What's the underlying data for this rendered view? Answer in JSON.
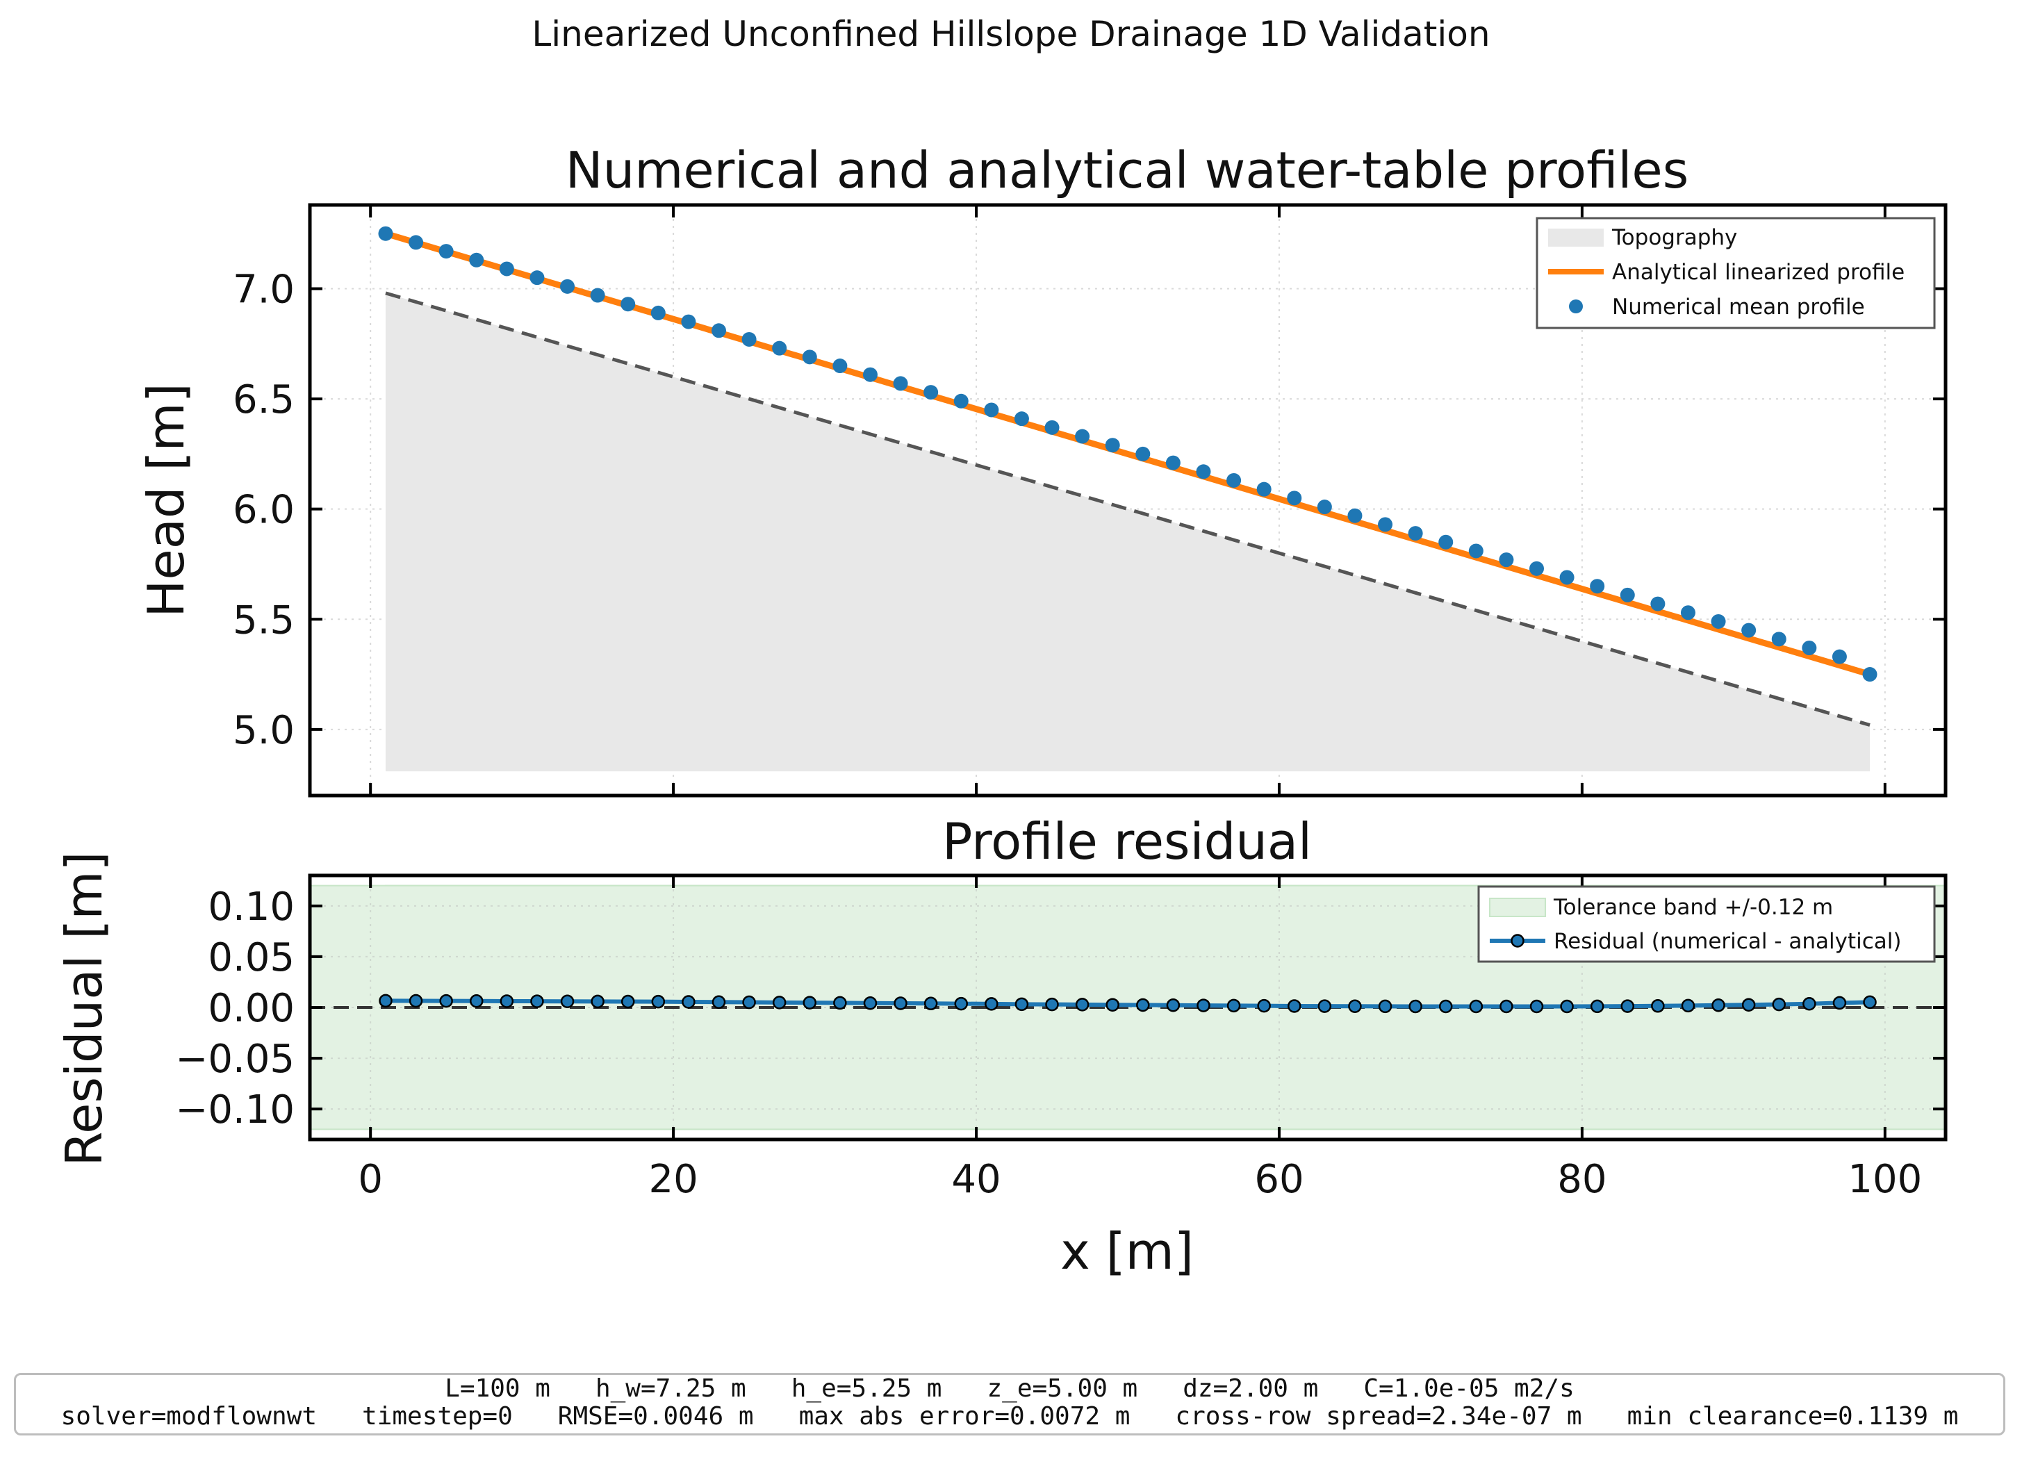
{
  "figure": {
    "suptitle": "Linearized Unconfined Hillslope Drainage 1D Validation"
  },
  "chart_data": [
    {
      "type": "line",
      "title": "Numerical and analytical water-table profiles",
      "xlabel": "",
      "ylabel": "Head [m]",
      "xlim": [
        -4,
        104
      ],
      "ylim": [
        4.7,
        7.38
      ],
      "xticks": [
        0,
        20,
        40,
        60,
        80,
        100
      ],
      "yticks": [
        5.0,
        5.5,
        6.0,
        6.5,
        7.0
      ],
      "ytick_labels": [
        "5.0",
        "5.5",
        "6.0",
        "6.5",
        "7.0"
      ],
      "grid": true,
      "legend_position": "top-right",
      "legend": [
        "Topography",
        "Analytical linearized profile",
        "Numerical mean profile"
      ],
      "colors": {
        "topography": "#e8e8e8",
        "analytical": "#ff7f0e",
        "numerical": "#1f77b4",
        "topo_line": "#555555"
      },
      "topography": {
        "x": [
          1,
          99
        ],
        "y": [
          6.98,
          5.02
        ],
        "fill_bottom": 4.81
      },
      "analytical": {
        "x": [
          1,
          99
        ],
        "y": [
          7.25,
          5.25
        ]
      },
      "numerical": {
        "x": [
          1,
          3,
          5,
          7,
          9,
          11,
          13,
          15,
          17,
          19,
          21,
          23,
          25,
          27,
          29,
          31,
          33,
          35,
          37,
          39,
          41,
          43,
          45,
          47,
          49,
          51,
          53,
          55,
          57,
          59,
          61,
          63,
          65,
          67,
          69,
          71,
          73,
          75,
          77,
          79,
          81,
          83,
          85,
          87,
          89,
          91,
          93,
          95,
          97,
          99
        ],
        "y": [
          7.25,
          7.21,
          7.17,
          7.13,
          7.09,
          7.05,
          7.01,
          6.97,
          6.93,
          6.89,
          6.85,
          6.81,
          6.77,
          6.73,
          6.69,
          6.65,
          6.61,
          6.57,
          6.53,
          6.49,
          6.45,
          6.41,
          6.37,
          6.33,
          6.29,
          6.25,
          6.21,
          6.17,
          6.13,
          6.09,
          6.05,
          6.01,
          5.97,
          5.93,
          5.89,
          5.85,
          5.81,
          5.77,
          5.73,
          5.69,
          5.65,
          5.61,
          5.57,
          5.53,
          5.49,
          5.45,
          5.41,
          5.37,
          5.33,
          5.25
        ]
      }
    },
    {
      "type": "line",
      "title": "Profile residual",
      "xlabel": "x [m]",
      "ylabel": "Residual [m]",
      "xlim": [
        -4,
        104
      ],
      "ylim": [
        -0.13,
        0.13
      ],
      "xticks": [
        0,
        20,
        40,
        60,
        80,
        100
      ],
      "xtick_labels": [
        "0",
        "20",
        "40",
        "60",
        "80",
        "100"
      ],
      "yticks": [
        -0.1,
        -0.05,
        0.0,
        0.05,
        0.1
      ],
      "ytick_labels": [
        "−0.10",
        "−0.05",
        "0.00",
        "0.05",
        "0.10"
      ],
      "grid": true,
      "legend_position": "top-right",
      "legend": [
        "Tolerance band +/-0.12 m",
        "Residual (numerical - analytical)"
      ],
      "tolerance": 0.12,
      "colors": {
        "band": "#e3f2e3",
        "band_edge": "#c8e6c8",
        "residual": "#1f77b4"
      },
      "residual": {
        "x": [
          1,
          3,
          5,
          7,
          9,
          11,
          13,
          15,
          17,
          19,
          21,
          23,
          25,
          27,
          29,
          31,
          33,
          35,
          37,
          39,
          41,
          43,
          45,
          47,
          49,
          51,
          53,
          55,
          57,
          59,
          61,
          63,
          65,
          67,
          69,
          71,
          73,
          75,
          77,
          79,
          81,
          83,
          85,
          87,
          89,
          91,
          93,
          95,
          97,
          99
        ],
        "y": [
          0.0066,
          0.0065,
          0.0064,
          0.0063,
          0.0062,
          0.0061,
          0.006,
          0.0059,
          0.0058,
          0.0057,
          0.0055,
          0.0053,
          0.0051,
          0.0049,
          0.0047,
          0.0045,
          0.0043,
          0.0041,
          0.0039,
          0.0037,
          0.0035,
          0.0032,
          0.003,
          0.0028,
          0.0026,
          0.0024,
          0.0022,
          0.002,
          0.0018,
          0.0016,
          0.0014,
          0.0013,
          0.0012,
          0.0011,
          0.001,
          0.001,
          0.001,
          0.001,
          0.001,
          0.001,
          0.0011,
          0.0013,
          0.0015,
          0.0018,
          0.0022,
          0.0026,
          0.003,
          0.0036,
          0.0045,
          0.0052
        ]
      }
    }
  ],
  "info": {
    "line1": "L=100 m   h_w=7.25 m   h_e=5.25 m   z_e=5.00 m   dz=2.00 m   C=1.0e-05 m2/s",
    "line2": "solver=modflownwt   timestep=0   RMSE=0.0046 m   max abs error=0.0072 m   cross-row spread=2.34e-07 m   min clearance=0.1139 m"
  }
}
